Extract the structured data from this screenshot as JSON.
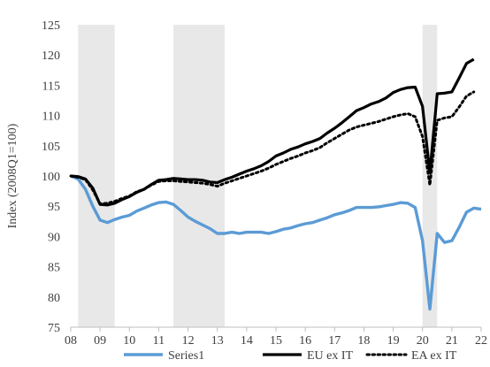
{
  "chart_data": {
    "type": "line",
    "title": "",
    "xlabel": "",
    "ylabel": "Index (2008Q1=100)",
    "xlim": [
      2008.0,
      2022.0
    ],
    "ylim": [
      75,
      125
    ],
    "yticks": [
      75,
      80,
      85,
      90,
      95,
      100,
      105,
      110,
      115,
      120,
      125
    ],
    "xticks": [
      {
        "label": "08",
        "x": 2008
      },
      {
        "label": "09",
        "x": 2009
      },
      {
        "label": "10",
        "x": 2010
      },
      {
        "label": "11",
        "x": 2011
      },
      {
        "label": "12",
        "x": 2012
      },
      {
        "label": "13",
        "x": 2013
      },
      {
        "label": "14",
        "x": 2014
      },
      {
        "label": "15",
        "x": 2015
      },
      {
        "label": "16",
        "x": 2016
      },
      {
        "label": "17",
        "x": 2017
      },
      {
        "label": "18",
        "x": 2018
      },
      {
        "label": "19",
        "x": 2019
      },
      {
        "label": "20",
        "x": 2020
      },
      {
        "label": "21",
        "x": 2021
      },
      {
        "label": "22",
        "x": 2022
      }
    ],
    "grid": false,
    "legend_position": "bottom",
    "recession_shading": [
      [
        2008.25,
        2009.5
      ],
      [
        2011.5,
        2013.25
      ],
      [
        2020.0,
        2020.5
      ]
    ],
    "series": [
      {
        "name": "Series1",
        "color": "#5b9bd5",
        "style": "solid",
        "points": [
          [
            2008.0,
            100.0
          ],
          [
            2008.25,
            99.5
          ],
          [
            2008.5,
            97.8
          ],
          [
            2008.75,
            95.0
          ],
          [
            2009.0,
            92.7
          ],
          [
            2009.25,
            92.3
          ],
          [
            2009.5,
            92.8
          ],
          [
            2009.75,
            93.2
          ],
          [
            2010.0,
            93.5
          ],
          [
            2010.25,
            94.2
          ],
          [
            2010.5,
            94.7
          ],
          [
            2010.75,
            95.2
          ],
          [
            2011.0,
            95.6
          ],
          [
            2011.25,
            95.7
          ],
          [
            2011.5,
            95.3
          ],
          [
            2011.75,
            94.3
          ],
          [
            2012.0,
            93.2
          ],
          [
            2012.25,
            92.5
          ],
          [
            2012.5,
            91.9
          ],
          [
            2012.75,
            91.3
          ],
          [
            2013.0,
            90.5
          ],
          [
            2013.25,
            90.5
          ],
          [
            2013.5,
            90.7
          ],
          [
            2013.75,
            90.5
          ],
          [
            2014.0,
            90.7
          ],
          [
            2014.25,
            90.7
          ],
          [
            2014.5,
            90.7
          ],
          [
            2014.75,
            90.5
          ],
          [
            2015.0,
            90.8
          ],
          [
            2015.25,
            91.2
          ],
          [
            2015.5,
            91.4
          ],
          [
            2015.75,
            91.8
          ],
          [
            2016.0,
            92.1
          ],
          [
            2016.25,
            92.3
          ],
          [
            2016.5,
            92.7
          ],
          [
            2016.75,
            93.1
          ],
          [
            2017.0,
            93.6
          ],
          [
            2017.25,
            93.9
          ],
          [
            2017.5,
            94.3
          ],
          [
            2017.75,
            94.8
          ],
          [
            2018.0,
            94.8
          ],
          [
            2018.25,
            94.8
          ],
          [
            2018.5,
            94.9
          ],
          [
            2018.75,
            95.1
          ],
          [
            2019.0,
            95.3
          ],
          [
            2019.25,
            95.6
          ],
          [
            2019.5,
            95.5
          ],
          [
            2019.75,
            94.8
          ],
          [
            2020.0,
            89.3
          ],
          [
            2020.25,
            78.0
          ],
          [
            2020.5,
            90.5
          ],
          [
            2020.75,
            89.0
          ],
          [
            2021.0,
            89.3
          ],
          [
            2021.25,
            91.5
          ],
          [
            2021.5,
            94.0
          ],
          [
            2021.75,
            94.7
          ],
          [
            2022.0,
            94.5
          ]
        ]
      },
      {
        "name": "EU ex IT",
        "color": "#000000",
        "style": "solid",
        "points": [
          [
            2008.0,
            100.0
          ],
          [
            2008.25,
            99.9
          ],
          [
            2008.5,
            99.5
          ],
          [
            2008.75,
            98.0
          ],
          [
            2009.0,
            95.3
          ],
          [
            2009.25,
            95.2
          ],
          [
            2009.5,
            95.5
          ],
          [
            2009.75,
            96.1
          ],
          [
            2010.0,
            96.6
          ],
          [
            2010.25,
            97.3
          ],
          [
            2010.5,
            97.8
          ],
          [
            2010.75,
            98.6
          ],
          [
            2011.0,
            99.3
          ],
          [
            2011.25,
            99.4
          ],
          [
            2011.5,
            99.6
          ],
          [
            2011.75,
            99.5
          ],
          [
            2012.0,
            99.4
          ],
          [
            2012.25,
            99.4
          ],
          [
            2012.5,
            99.3
          ],
          [
            2012.75,
            99.0
          ],
          [
            2013.0,
            98.9
          ],
          [
            2013.25,
            99.4
          ],
          [
            2013.5,
            99.8
          ],
          [
            2013.75,
            100.3
          ],
          [
            2014.0,
            100.8
          ],
          [
            2014.25,
            101.2
          ],
          [
            2014.5,
            101.7
          ],
          [
            2014.75,
            102.4
          ],
          [
            2015.0,
            103.3
          ],
          [
            2015.25,
            103.8
          ],
          [
            2015.5,
            104.4
          ],
          [
            2015.75,
            104.8
          ],
          [
            2016.0,
            105.3
          ],
          [
            2016.25,
            105.7
          ],
          [
            2016.5,
            106.2
          ],
          [
            2016.75,
            107.1
          ],
          [
            2017.0,
            107.9
          ],
          [
            2017.25,
            108.8
          ],
          [
            2017.5,
            109.8
          ],
          [
            2017.75,
            110.8
          ],
          [
            2018.0,
            111.3
          ],
          [
            2018.25,
            111.9
          ],
          [
            2018.5,
            112.3
          ],
          [
            2018.75,
            112.9
          ],
          [
            2019.0,
            113.8
          ],
          [
            2019.25,
            114.3
          ],
          [
            2019.5,
            114.6
          ],
          [
            2019.75,
            114.7
          ],
          [
            2020.0,
            111.5
          ],
          [
            2020.25,
            100.5
          ],
          [
            2020.5,
            113.6
          ],
          [
            2020.75,
            113.7
          ],
          [
            2021.0,
            113.9
          ],
          [
            2021.25,
            116.2
          ],
          [
            2021.5,
            118.6
          ],
          [
            2021.75,
            119.3
          ]
        ]
      },
      {
        "name": "EA ex IT",
        "color": "#000000",
        "style": "dotted",
        "points": [
          [
            2008.0,
            100.0
          ],
          [
            2008.25,
            99.8
          ],
          [
            2008.5,
            99.4
          ],
          [
            2008.75,
            97.7
          ],
          [
            2009.0,
            95.4
          ],
          [
            2009.25,
            95.5
          ],
          [
            2009.5,
            95.8
          ],
          [
            2009.75,
            96.3
          ],
          [
            2010.0,
            96.7
          ],
          [
            2010.25,
            97.4
          ],
          [
            2010.5,
            97.8
          ],
          [
            2010.75,
            98.5
          ],
          [
            2011.0,
            99.1
          ],
          [
            2011.25,
            99.2
          ],
          [
            2011.5,
            99.2
          ],
          [
            2011.75,
            99.1
          ],
          [
            2012.0,
            99.0
          ],
          [
            2012.25,
            98.9
          ],
          [
            2012.5,
            98.8
          ],
          [
            2012.75,
            98.6
          ],
          [
            2013.0,
            98.3
          ],
          [
            2013.25,
            98.8
          ],
          [
            2013.5,
            99.2
          ],
          [
            2013.75,
            99.6
          ],
          [
            2014.0,
            100.0
          ],
          [
            2014.25,
            100.4
          ],
          [
            2014.5,
            100.8
          ],
          [
            2014.75,
            101.3
          ],
          [
            2015.0,
            101.9
          ],
          [
            2015.25,
            102.4
          ],
          [
            2015.5,
            102.9
          ],
          [
            2015.75,
            103.3
          ],
          [
            2016.0,
            103.8
          ],
          [
            2016.25,
            104.2
          ],
          [
            2016.5,
            104.7
          ],
          [
            2016.75,
            105.5
          ],
          [
            2017.0,
            106.2
          ],
          [
            2017.25,
            106.9
          ],
          [
            2017.5,
            107.6
          ],
          [
            2017.75,
            108.1
          ],
          [
            2018.0,
            108.4
          ],
          [
            2018.25,
            108.7
          ],
          [
            2018.5,
            109.0
          ],
          [
            2018.75,
            109.4
          ],
          [
            2019.0,
            109.8
          ],
          [
            2019.25,
            110.1
          ],
          [
            2019.5,
            110.3
          ],
          [
            2019.75,
            109.8
          ],
          [
            2020.0,
            106.5
          ],
          [
            2020.25,
            98.5
          ],
          [
            2020.5,
            109.2
          ],
          [
            2020.75,
            109.6
          ],
          [
            2021.0,
            109.8
          ],
          [
            2021.25,
            111.4
          ],
          [
            2021.5,
            113.2
          ],
          [
            2021.75,
            113.9
          ]
        ]
      }
    ]
  }
}
